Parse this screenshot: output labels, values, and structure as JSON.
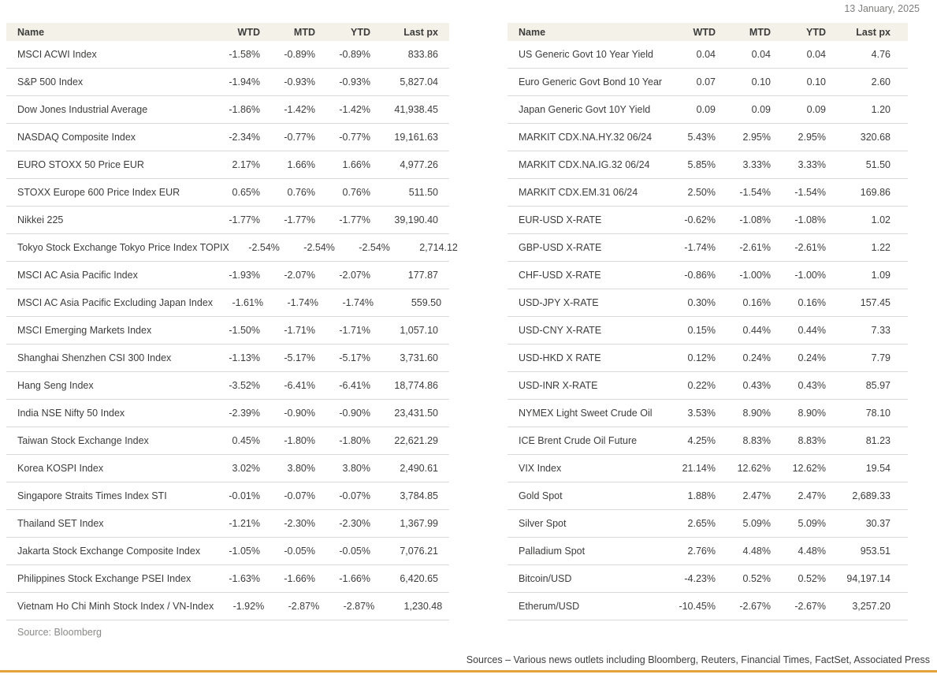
{
  "page": {
    "date": "13 January, 2025",
    "left_source": "Source: Bloomberg",
    "right_source": "Sources – Various news outlets including Bloomberg, Reuters, Financial Times, FactSet, Associated Press",
    "accent_color": "#e7a33b",
    "header_bg_color": "#f4f1e9",
    "divider_color": "#dbdad7"
  },
  "tables": {
    "left": {
      "headers": {
        "name": "Name",
        "wtd": "WTD",
        "mtd": "MTD",
        "ytd": "YTD",
        "last": "Last px"
      },
      "rows": [
        {
          "name": "MSCI ACWI Index",
          "wtd": "-1.58%",
          "mtd": "-0.89%",
          "ytd": "-0.89%",
          "last": "833.86"
        },
        {
          "name": "S&P 500 Index",
          "wtd": "-1.94%",
          "mtd": "-0.93%",
          "ytd": "-0.93%",
          "last": "5,827.04"
        },
        {
          "name": "Dow Jones Industrial Average",
          "wtd": "-1.86%",
          "mtd": "-1.42%",
          "ytd": "-1.42%",
          "last": "41,938.45"
        },
        {
          "name": "NASDAQ Composite Index",
          "wtd": "-2.34%",
          "mtd": "-0.77%",
          "ytd": "-0.77%",
          "last": "19,161.63"
        },
        {
          "name": "EURO STOXX 50 Price EUR",
          "wtd": "2.17%",
          "mtd": "1.66%",
          "ytd": "1.66%",
          "last": "4,977.26"
        },
        {
          "name": "STOXX Europe 600 Price Index EUR",
          "wtd": "0.65%",
          "mtd": "0.76%",
          "ytd": "0.76%",
          "last": "511.50"
        },
        {
          "name": "Nikkei 225",
          "wtd": "-1.77%",
          "mtd": "-1.77%",
          "ytd": "-1.77%",
          "last": "39,190.40"
        },
        {
          "name": "Tokyo Stock Exchange Tokyo Price Index TOPIX",
          "wtd": "-2.54%",
          "mtd": "-2.54%",
          "ytd": "-2.54%",
          "last": "2,714.12"
        },
        {
          "name": "MSCI AC Asia Pacific Index",
          "wtd": "-1.93%",
          "mtd": "-2.07%",
          "ytd": "-2.07%",
          "last": "177.87"
        },
        {
          "name": "MSCI AC Asia Pacific Excluding Japan Index",
          "wtd": "-1.61%",
          "mtd": "-1.74%",
          "ytd": "-1.74%",
          "last": "559.50"
        },
        {
          "name": "MSCI Emerging Markets Index",
          "wtd": "-1.50%",
          "mtd": "-1.71%",
          "ytd": "-1.71%",
          "last": "1,057.10"
        },
        {
          "name": "Shanghai Shenzhen CSI 300 Index",
          "wtd": "-1.13%",
          "mtd": "-5.17%",
          "ytd": "-5.17%",
          "last": "3,731.60"
        },
        {
          "name": "Hang Seng Index",
          "wtd": "-3.52%",
          "mtd": "-6.41%",
          "ytd": "-6.41%",
          "last": "18,774.86"
        },
        {
          "name": "India NSE Nifty 50 Index",
          "wtd": "-2.39%",
          "mtd": "-0.90%",
          "ytd": "-0.90%",
          "last": "23,431.50"
        },
        {
          "name": "Taiwan Stock Exchange Index",
          "wtd": "0.45%",
          "mtd": "-1.80%",
          "ytd": "-1.80%",
          "last": "22,621.29"
        },
        {
          "name": "Korea KOSPI Index",
          "wtd": "3.02%",
          "mtd": "3.80%",
          "ytd": "3.80%",
          "last": "2,490.61"
        },
        {
          "name": "Singapore Straits Times Index STI",
          "wtd": "-0.01%",
          "mtd": "-0.07%",
          "ytd": "-0.07%",
          "last": "3,784.85"
        },
        {
          "name": "Thailand SET Index",
          "wtd": "-1.21%",
          "mtd": "-2.30%",
          "ytd": "-2.30%",
          "last": "1,367.99"
        },
        {
          "name": "Jakarta Stock Exchange Composite Index",
          "wtd": "-1.05%",
          "mtd": "-0.05%",
          "ytd": "-0.05%",
          "last": "7,076.21"
        },
        {
          "name": "Philippines Stock Exchange PSEI Index",
          "wtd": "-1.63%",
          "mtd": "-1.66%",
          "ytd": "-1.66%",
          "last": "6,420.65"
        },
        {
          "name": "Vietnam Ho Chi Minh Stock Index / VN-Index",
          "wtd": "-1.92%",
          "mtd": "-2.87%",
          "ytd": "-2.87%",
          "last": "1,230.48"
        }
      ]
    },
    "right": {
      "headers": {
        "name": "Name",
        "wtd": "WTD",
        "mtd": "MTD",
        "ytd": "YTD",
        "last": "Last px"
      },
      "rows": [
        {
          "name": "US Generic Govt 10 Year Yield",
          "wtd": "0.04",
          "mtd": "0.04",
          "ytd": "0.04",
          "last": "4.76"
        },
        {
          "name": "Euro Generic Govt Bond 10 Year",
          "wtd": "0.07",
          "mtd": "0.10",
          "ytd": "0.10",
          "last": "2.60"
        },
        {
          "name": "Japan Generic Govt 10Y Yield",
          "wtd": "0.09",
          "mtd": "0.09",
          "ytd": "0.09",
          "last": "1.20"
        },
        {
          "name": "MARKIT CDX.NA.HY.32 06/24",
          "wtd": "5.43%",
          "mtd": "2.95%",
          "ytd": "2.95%",
          "last": "320.68"
        },
        {
          "name": "MARKIT CDX.NA.IG.32 06/24",
          "wtd": "5.85%",
          "mtd": "3.33%",
          "ytd": "3.33%",
          "last": "51.50"
        },
        {
          "name": "MARKIT CDX.EM.31 06/24",
          "wtd": "2.50%",
          "mtd": "-1.54%",
          "ytd": "-1.54%",
          "last": "169.86"
        },
        {
          "name": "EUR-USD X-RATE",
          "wtd": "-0.62%",
          "mtd": "-1.08%",
          "ytd": "-1.08%",
          "last": "1.02"
        },
        {
          "name": "GBP-USD X-RATE",
          "wtd": "-1.74%",
          "mtd": "-2.61%",
          "ytd": "-2.61%",
          "last": "1.22"
        },
        {
          "name": "CHF-USD X-RATE",
          "wtd": "-0.86%",
          "mtd": "-1.00%",
          "ytd": "-1.00%",
          "last": "1.09"
        },
        {
          "name": "USD-JPY X-RATE",
          "wtd": "0.30%",
          "mtd": "0.16%",
          "ytd": "0.16%",
          "last": "157.45"
        },
        {
          "name": "USD-CNY X-RATE",
          "wtd": "0.15%",
          "mtd": "0.44%",
          "ytd": "0.44%",
          "last": "7.33"
        },
        {
          "name": "USD-HKD X RATE",
          "wtd": "0.12%",
          "mtd": "0.24%",
          "ytd": "0.24%",
          "last": "7.79"
        },
        {
          "name": "USD-INR X-RATE",
          "wtd": "0.22%",
          "mtd": "0.43%",
          "ytd": "0.43%",
          "last": "85.97"
        },
        {
          "name": "NYMEX Light Sweet Crude Oil",
          "wtd": "3.53%",
          "mtd": "8.90%",
          "ytd": "8.90%",
          "last": "78.10"
        },
        {
          "name": "ICE Brent Crude Oil Future",
          "wtd": "4.25%",
          "mtd": "8.83%",
          "ytd": "8.83%",
          "last": "81.23"
        },
        {
          "name": "VIX Index",
          "wtd": "21.14%",
          "mtd": "12.62%",
          "ytd": "12.62%",
          "last": "19.54"
        },
        {
          "name": "Gold Spot",
          "wtd": "1.88%",
          "mtd": "2.47%",
          "ytd": "2.47%",
          "last": "2,689.33"
        },
        {
          "name": "Silver Spot",
          "wtd": "2.65%",
          "mtd": "5.09%",
          "ytd": "5.09%",
          "last": "30.37"
        },
        {
          "name": "Palladium Spot",
          "wtd": "2.76%",
          "mtd": "4.48%",
          "ytd": "4.48%",
          "last": "953.51"
        },
        {
          "name": "Bitcoin/USD",
          "wtd": "-4.23%",
          "mtd": "0.52%",
          "ytd": "0.52%",
          "last": "94,197.14"
        },
        {
          "name": "Etherum/USD",
          "wtd": "-10.45%",
          "mtd": "-2.67%",
          "ytd": "-2.67%",
          "last": "3,257.20"
        }
      ]
    }
  }
}
